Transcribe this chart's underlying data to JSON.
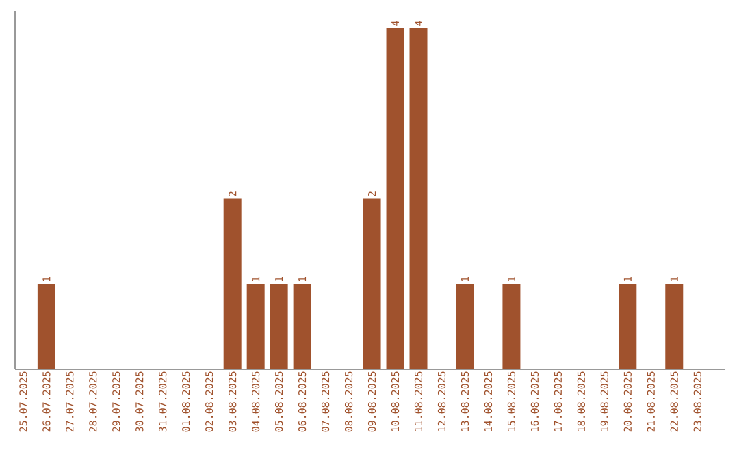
{
  "chart_data": {
    "type": "bar",
    "categories": [
      "25.07.2025",
      "26.07.2025",
      "27.07.2025",
      "28.07.2025",
      "29.07.2025",
      "30.07.2025",
      "31.07.2025",
      "01.08.2025",
      "02.08.2025",
      "03.08.2025",
      "04.08.2025",
      "05.08.2025",
      "06.08.2025",
      "07.08.2025",
      "08.08.2025",
      "09.08.2025",
      "10.08.2025",
      "11.08.2025",
      "12.08.2025",
      "13.08.2025",
      "14.08.2025",
      "15.08.2025",
      "16.08.2025",
      "17.08.2025",
      "18.08.2025",
      "19.08.2025",
      "20.08.2025",
      "21.08.2025",
      "22.08.2025",
      "23.08.2025"
    ],
    "values": [
      null,
      1,
      null,
      null,
      null,
      null,
      null,
      null,
      null,
      2,
      1,
      1,
      1,
      null,
      null,
      2,
      4,
      4,
      null,
      1,
      null,
      1,
      null,
      null,
      null,
      null,
      1,
      null,
      1,
      null
    ],
    "color": "#a0522d",
    "ylim": [
      0,
      4.2
    ],
    "data_labels": true,
    "tick_labels": "x"
  }
}
